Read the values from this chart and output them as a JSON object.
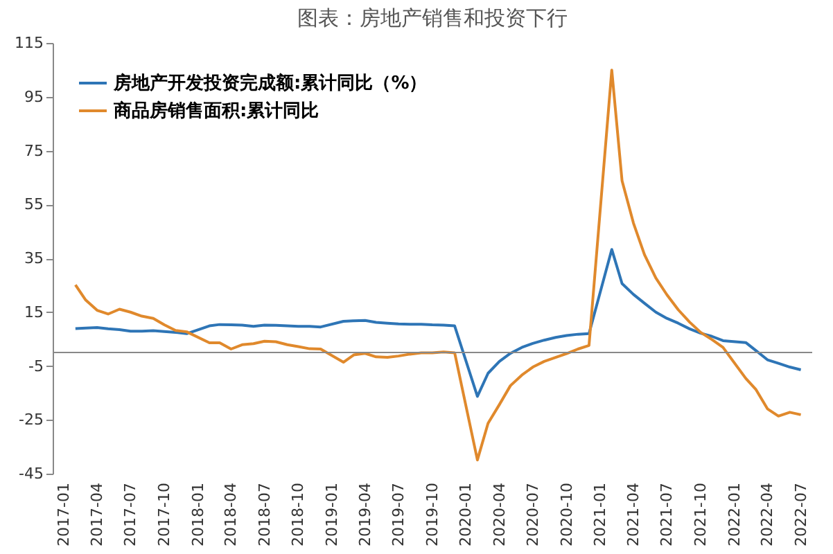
{
  "chart_data": {
    "type": "line",
    "title": "图表：房地产销售和投资下行",
    "x": [
      "2017-02",
      "2017-03",
      "2017-04",
      "2017-05",
      "2017-06",
      "2017-07",
      "2017-08",
      "2017-09",
      "2017-10",
      "2017-11",
      "2017-12",
      "2018-02",
      "2018-03",
      "2018-04",
      "2018-05",
      "2018-06",
      "2018-07",
      "2018-08",
      "2018-09",
      "2018-10",
      "2018-11",
      "2018-12",
      "2019-02",
      "2019-03",
      "2019-04",
      "2019-05",
      "2019-06",
      "2019-07",
      "2019-08",
      "2019-09",
      "2019-10",
      "2019-11",
      "2019-12",
      "2020-02",
      "2020-03",
      "2020-04",
      "2020-05",
      "2020-06",
      "2020-07",
      "2020-08",
      "2020-09",
      "2020-10",
      "2020-11",
      "2020-12",
      "2021-02",
      "2021-03",
      "2021-04",
      "2021-05",
      "2021-06",
      "2021-07",
      "2021-08",
      "2021-09",
      "2021-10",
      "2021-11",
      "2021-12",
      "2022-02",
      "2022-03",
      "2022-04",
      "2022-05",
      "2022-06",
      "2022-07"
    ],
    "series": [
      {
        "name": "房地产开发投资完成额:累计同比（%）",
        "color": "#2e75b6",
        "values": [
          8.9,
          9.1,
          9.3,
          8.8,
          8.5,
          7.9,
          7.9,
          8.1,
          7.8,
          7.5,
          7.0,
          9.9,
          10.4,
          10.3,
          10.2,
          9.7,
          10.2,
          10.1,
          9.9,
          9.7,
          9.7,
          9.5,
          11.6,
          11.8,
          11.9,
          11.2,
          10.9,
          10.6,
          10.5,
          10.5,
          10.3,
          10.2,
          9.9,
          -16.3,
          -7.7,
          -3.3,
          -0.3,
          1.9,
          3.4,
          4.6,
          5.6,
          6.3,
          6.8,
          7.0,
          38.3,
          25.6,
          21.6,
          18.3,
          15.0,
          12.7,
          10.9,
          8.8,
          7.2,
          6.0,
          4.4,
          3.7,
          0.7,
          -2.7,
          -4.0,
          -5.4,
          -6.4
        ]
      },
      {
        "name": "商品房销售面积:累计同比",
        "color": "#e0892c",
        "values": [
          25.1,
          19.5,
          15.7,
          14.3,
          16.1,
          15.0,
          13.5,
          12.7,
          10.3,
          8.2,
          7.7,
          3.6,
          3.6,
          1.3,
          2.9,
          3.3,
          4.2,
          4.0,
          2.9,
          2.2,
          1.4,
          1.3,
          -3.6,
          -0.9,
          -0.3,
          -1.6,
          -1.8,
          -1.3,
          -0.6,
          -0.1,
          -0.1,
          0.2,
          -0.1,
          -39.9,
          -26.3,
          -19.3,
          -12.3,
          -8.4,
          -5.4,
          -3.3,
          -1.8,
          -0.4,
          1.3,
          2.6,
          104.9,
          63.8,
          48.1,
          36.4,
          27.7,
          21.5,
          15.9,
          11.3,
          7.5,
          4.8,
          1.9,
          -9.6,
          -13.8,
          -20.9,
          -23.6,
          -22.2,
          -23.1
        ]
      }
    ],
    "xlim": [
      "2016-12",
      "2022-08"
    ],
    "xticks": [
      "2017-01",
      "2017-04",
      "2017-07",
      "2017-10",
      "2018-01",
      "2018-04",
      "2018-07",
      "2018-10",
      "2019-01",
      "2019-04",
      "2019-07",
      "2019-10",
      "2020-01",
      "2020-04",
      "2020-07",
      "2020-10",
      "2021-01",
      "2021-04",
      "2021-07",
      "2021-10",
      "2022-01",
      "2022-04",
      "2022-07"
    ],
    "ylim": [
      -45,
      115
    ],
    "yticks": [
      -45,
      -25,
      -5,
      15,
      35,
      55,
      75,
      95,
      115
    ],
    "ref_lines": [
      {
        "axis": "y",
        "value": 0,
        "color": "#888888"
      }
    ],
    "grid": false,
    "legend": "top left",
    "marker": "none",
    "line_style": "solid"
  }
}
